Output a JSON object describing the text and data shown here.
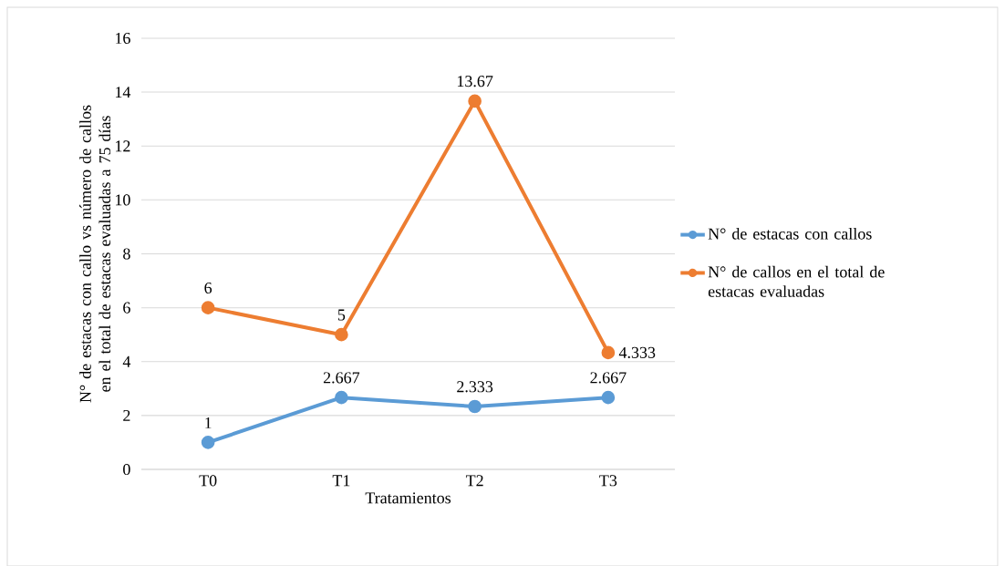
{
  "chart_data": {
    "type": "line",
    "xlabel": "Tratamientos",
    "ylabel": "N° de estacas con callo vs número de callos en el total de estacas evaluadas a 75 días",
    "categories": [
      "T0",
      "T1",
      "T2",
      "T3"
    ],
    "series": [
      {
        "name": "N° de estacas con callos",
        "color": "#5b9bd5",
        "values": [
          1,
          2.667,
          2.333,
          2.667
        ]
      },
      {
        "name": "N° de callos en el total de estacas evaluadas",
        "color": "#ed7d31",
        "values": [
          6,
          5,
          13.67,
          4.333
        ]
      }
    ],
    "ylim": [
      0,
      16
    ],
    "yticks": [
      0,
      2,
      4,
      6,
      8,
      10,
      12,
      14,
      16
    ],
    "grid": "y",
    "legend": "right",
    "marker": "circle",
    "line_style": "solid",
    "data_labels": true
  }
}
